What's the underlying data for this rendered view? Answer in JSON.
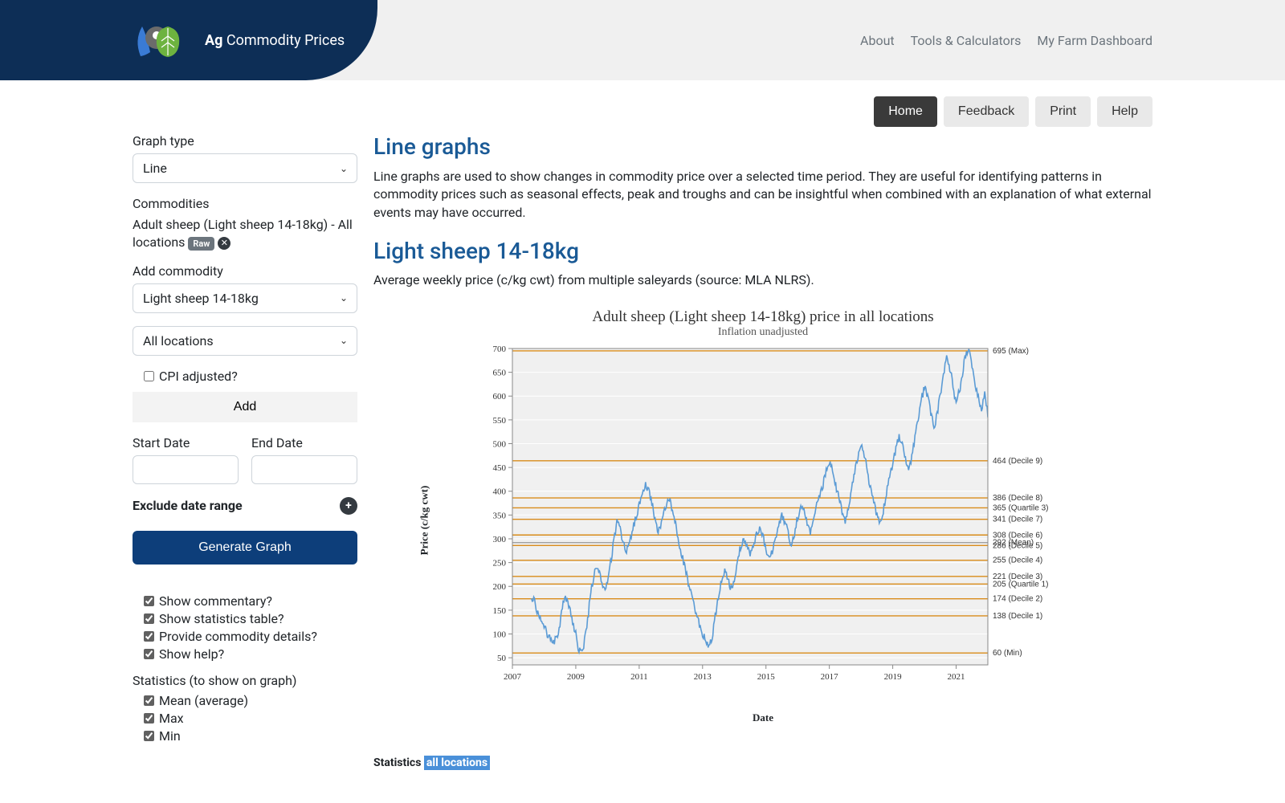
{
  "header": {
    "logo_bold": "Ag",
    "logo_rest": " Commodity Prices",
    "nav": [
      "About",
      "Tools & Calculators",
      "My Farm Dashboard"
    ]
  },
  "subnav": {
    "items": [
      "Home",
      "Feedback",
      "Print",
      "Help"
    ],
    "active_index": 0
  },
  "sidebar": {
    "graph_type_label": "Graph type",
    "graph_type_value": "Line",
    "commodities_label": "Commodities",
    "commodity_line": "Adult sheep (Light sheep 14-18kg) - All locations",
    "raw_badge": "Raw",
    "add_commodity_label": "Add commodity",
    "add_commodity_value": "Light sheep 14-18kg",
    "location_value": "All locations",
    "cpi_label": "CPI adjusted?",
    "add_btn": "Add",
    "start_date_label": "Start Date",
    "end_date_label": "End Date",
    "exclude_label": "Exclude date range",
    "generate_btn": "Generate Graph",
    "show_opts": [
      "Show commentary?",
      "Show statistics table?",
      "Provide commodity details?",
      "Show help?"
    ],
    "stats_label": "Statistics (to show on graph)",
    "stats_opts": [
      "Mean (average)",
      "Max",
      "Min"
    ]
  },
  "main": {
    "title1": "Line graphs",
    "desc1": "Line graphs are used to show changes in commodity price over a selected time period. They are useful for identifying patterns in commodity prices such as seasonal effects, peak and troughs and can be insightful when combined with an explanation of what external events may have occurred.",
    "title2": "Light sheep 14-18kg",
    "desc2": "Average weekly price (c/kg cwt) from multiple saleyards (source: MLA NLRS).",
    "footer_stats_label": "Statistics ",
    "footer_stats_hl": "all locations"
  },
  "chart": {
    "title": "Adult sheep (Light sheep 14-18kg) price in all locations",
    "subtitle": "Inflation unadjusted",
    "ylabel": "Price (c/kg cwt)",
    "xlabel": "Date",
    "plot_bg": "#f0f0f0",
    "grid_color": "#d8d8d8",
    "border_color": "#888888",
    "line_color": "#5b9bd5",
    "hline_color": "#d98c1a",
    "mean_color": "#a0a0a0",
    "text_color": "#333333",
    "ylim": [
      35,
      700
    ],
    "ytick_step": 50,
    "yticks": [
      50,
      100,
      150,
      200,
      250,
      300,
      350,
      400,
      450,
      500,
      550,
      600,
      650,
      700
    ],
    "x_years": [
      2007,
      2009,
      2011,
      2013,
      2015,
      2017,
      2019,
      2021
    ],
    "x_range": [
      2007,
      2022
    ],
    "hlines": [
      {
        "v": 695,
        "label": "695 (Max)"
      },
      {
        "v": 464,
        "label": "464 (Decile 9)"
      },
      {
        "v": 386,
        "label": "386 (Decile 8)"
      },
      {
        "v": 365,
        "label": "365 (Quartile 3)"
      },
      {
        "v": 341,
        "label": "341 (Decile 7)"
      },
      {
        "v": 308,
        "label": "308 (Decile 6)"
      },
      {
        "v": 292,
        "label": "292 (Mean)",
        "mean": true
      },
      {
        "v": 286,
        "label": "286 (Decile 5)"
      },
      {
        "v": 255,
        "label": "255 (Decile 4)"
      },
      {
        "v": 221,
        "label": "221 (Decile 3)"
      },
      {
        "v": 205,
        "label": "205 (Quartile 1)"
      },
      {
        "v": 174,
        "label": "174 (Decile 2)"
      },
      {
        "v": 138,
        "label": "138 (Decile 1)"
      },
      {
        "v": 60,
        "label": "60 (Min)"
      }
    ],
    "series": [
      [
        2007.6,
        175
      ],
      [
        2007.7,
        170
      ],
      [
        2007.8,
        145
      ],
      [
        2007.9,
        130
      ],
      [
        2008.0,
        120
      ],
      [
        2008.1,
        100
      ],
      [
        2008.2,
        90
      ],
      [
        2008.3,
        80
      ],
      [
        2008.4,
        95
      ],
      [
        2008.5,
        120
      ],
      [
        2008.6,
        165
      ],
      [
        2008.7,
        175
      ],
      [
        2008.8,
        155
      ],
      [
        2008.9,
        125
      ],
      [
        2009.0,
        100
      ],
      [
        2009.1,
        65
      ],
      [
        2009.2,
        60
      ],
      [
        2009.3,
        95
      ],
      [
        2009.4,
        145
      ],
      [
        2009.5,
        200
      ],
      [
        2009.6,
        230
      ],
      [
        2009.7,
        235
      ],
      [
        2009.8,
        215
      ],
      [
        2009.9,
        195
      ],
      [
        2010.0,
        210
      ],
      [
        2010.1,
        250
      ],
      [
        2010.2,
        300
      ],
      [
        2010.3,
        335
      ],
      [
        2010.4,
        320
      ],
      [
        2010.5,
        290
      ],
      [
        2010.6,
        275
      ],
      [
        2010.7,
        295
      ],
      [
        2010.8,
        320
      ],
      [
        2010.9,
        345
      ],
      [
        2011.0,
        370
      ],
      [
        2011.1,
        395
      ],
      [
        2011.2,
        412
      ],
      [
        2011.3,
        400
      ],
      [
        2011.4,
        375
      ],
      [
        2011.5,
        340
      ],
      [
        2011.6,
        315
      ],
      [
        2011.7,
        330
      ],
      [
        2011.8,
        360
      ],
      [
        2011.9,
        385
      ],
      [
        2012.0,
        375
      ],
      [
        2012.1,
        345
      ],
      [
        2012.2,
        310
      ],
      [
        2012.3,
        280
      ],
      [
        2012.4,
        250
      ],
      [
        2012.5,
        225
      ],
      [
        2012.6,
        195
      ],
      [
        2012.7,
        165
      ],
      [
        2012.8,
        140
      ],
      [
        2012.9,
        120
      ],
      [
        2013.0,
        100
      ],
      [
        2013.1,
        85
      ],
      [
        2013.2,
        75
      ],
      [
        2013.3,
        95
      ],
      [
        2013.4,
        135
      ],
      [
        2013.5,
        175
      ],
      [
        2013.6,
        210
      ],
      [
        2013.7,
        230
      ],
      [
        2013.8,
        215
      ],
      [
        2013.9,
        195
      ],
      [
        2014.0,
        215
      ],
      [
        2014.1,
        255
      ],
      [
        2014.2,
        285
      ],
      [
        2014.3,
        300
      ],
      [
        2014.4,
        285
      ],
      [
        2014.5,
        265
      ],
      [
        2014.6,
        280
      ],
      [
        2014.7,
        310
      ],
      [
        2014.8,
        325
      ],
      [
        2014.9,
        305
      ],
      [
        2015.0,
        280
      ],
      [
        2015.1,
        260
      ],
      [
        2015.2,
        275
      ],
      [
        2015.3,
        305
      ],
      [
        2015.4,
        330
      ],
      [
        2015.5,
        350
      ],
      [
        2015.6,
        335
      ],
      [
        2015.7,
        310
      ],
      [
        2015.8,
        290
      ],
      [
        2015.9,
        310
      ],
      [
        2016.0,
        345
      ],
      [
        2016.1,
        370
      ],
      [
        2016.2,
        355
      ],
      [
        2016.3,
        330
      ],
      [
        2016.4,
        310
      ],
      [
        2016.5,
        335
      ],
      [
        2016.6,
        370
      ],
      [
        2016.7,
        395
      ],
      [
        2016.8,
        415
      ],
      [
        2016.9,
        440
      ],
      [
        2017.0,
        460
      ],
      [
        2017.1,
        445
      ],
      [
        2017.2,
        415
      ],
      [
        2017.3,
        385
      ],
      [
        2017.4,
        360
      ],
      [
        2017.5,
        340
      ],
      [
        2017.6,
        365
      ],
      [
        2017.7,
        400
      ],
      [
        2017.8,
        440
      ],
      [
        2017.9,
        475
      ],
      [
        2018.0,
        500
      ],
      [
        2018.1,
        475
      ],
      [
        2018.2,
        440
      ],
      [
        2018.3,
        405
      ],
      [
        2018.4,
        375
      ],
      [
        2018.5,
        350
      ],
      [
        2018.6,
        330
      ],
      [
        2018.7,
        355
      ],
      [
        2018.8,
        395
      ],
      [
        2018.9,
        430
      ],
      [
        2019.0,
        460
      ],
      [
        2019.1,
        490
      ],
      [
        2019.2,
        515
      ],
      [
        2019.3,
        495
      ],
      [
        2019.4,
        465
      ],
      [
        2019.5,
        445
      ],
      [
        2019.6,
        470
      ],
      [
        2019.7,
        510
      ],
      [
        2019.8,
        555
      ],
      [
        2019.9,
        590
      ],
      [
        2020.0,
        620
      ],
      [
        2020.1,
        600
      ],
      [
        2020.2,
        565
      ],
      [
        2020.3,
        535
      ],
      [
        2020.4,
        560
      ],
      [
        2020.5,
        605
      ],
      [
        2020.6,
        650
      ],
      [
        2020.7,
        680
      ],
      [
        2020.8,
        660
      ],
      [
        2020.9,
        620
      ],
      [
        2021.0,
        585
      ],
      [
        2021.1,
        610
      ],
      [
        2021.2,
        650
      ],
      [
        2021.3,
        685
      ],
      [
        2021.4,
        695
      ],
      [
        2021.5,
        665
      ],
      [
        2021.6,
        625
      ],
      [
        2021.7,
        595
      ],
      [
        2021.8,
        570
      ],
      [
        2021.9,
        605
      ],
      [
        2022.0,
        565
      ]
    ]
  }
}
